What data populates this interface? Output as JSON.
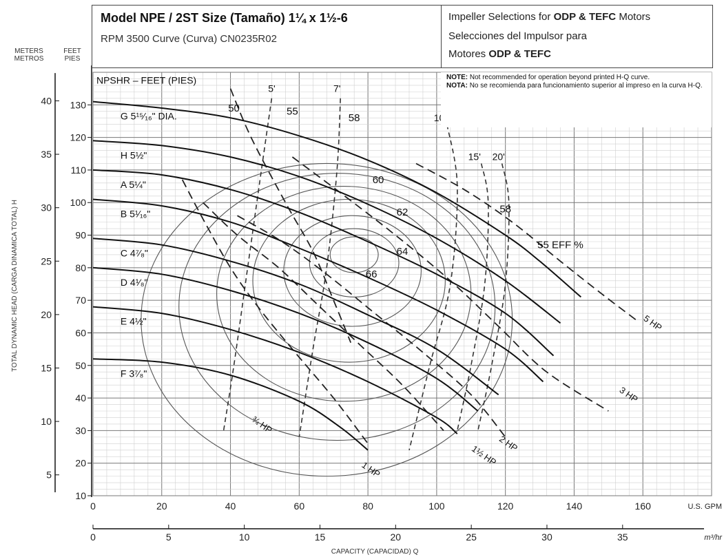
{
  "header": {
    "model_prefix": "Model NPE / 2ST Size (Tamaño) 1¼ x 1½-6",
    "rpm_line": "RPM 3500 Curve (Curva) CN0235R02",
    "impeller_line1_a": "Impeller Selections for ",
    "impeller_line1_b": "ODP & TEFC",
    "impeller_line1_c": " Motors",
    "impeller_line2": "Selecciones del Impulsor para",
    "impeller_line3_a": "Motores ",
    "impeller_line3_b": "ODP & TEFC"
  },
  "notes": {
    "note_label": "NOTE:",
    "note_text": " Not recommended for operation beyond printed H-Q curve.",
    "nota_label": "NOTA:",
    "nota_text": " No se recomienda para funcionamiento superior al impreso en la curva H-Q."
  },
  "chart_data": {
    "type": "line",
    "y_axis_left_label": "TOTAL DYNAMIC HEAD (CARGA DINAMICA TOTAL) H",
    "unit_meters": [
      "METERS",
      "METROS"
    ],
    "unit_feet": [
      "FEET",
      "PIES"
    ],
    "x_axis_gpm_unit": "U.S. GPM",
    "x_axis_m3_unit": "m³/hr",
    "x_axis_label": "CAPACITY (CAPACIDAD) Q",
    "npsh_label": "NPSHR – FEET (PIES)",
    "xlim_gpm": [
      0,
      180
    ],
    "ylim_feet": [
      10,
      140
    ],
    "x_ticks_gpm": [
      0,
      20,
      40,
      60,
      80,
      100,
      120,
      140,
      160
    ],
    "x_ticks_m3": [
      0,
      5,
      10,
      15,
      20,
      25,
      30,
      35
    ],
    "y_ticks_feet": [
      10,
      20,
      30,
      40,
      50,
      60,
      70,
      80,
      90,
      100,
      110,
      120,
      130
    ],
    "y_ticks_meters": [
      5,
      10,
      15,
      20,
      25,
      30,
      35,
      40
    ],
    "impeller_curves": [
      {
        "name": "G 5¹⁵⁄₁₆\" DIA.",
        "points": [
          [
            0,
            131
          ],
          [
            20,
            129
          ],
          [
            40,
            126
          ],
          [
            60,
            120.5
          ],
          [
            80,
            113
          ],
          [
            100,
            103
          ],
          [
            120,
            90
          ],
          [
            130,
            82
          ],
          [
            142,
            71
          ]
        ]
      },
      {
        "name": "H 5½\"",
        "points": [
          [
            0,
            119
          ],
          [
            20,
            117.5
          ],
          [
            40,
            114
          ],
          [
            60,
            108
          ],
          [
            80,
            99.5
          ],
          [
            100,
            89
          ],
          [
            120,
            76
          ],
          [
            136,
            63
          ]
        ]
      },
      {
        "name": "A 5¼\"",
        "points": [
          [
            0,
            110
          ],
          [
            20,
            108.5
          ],
          [
            40,
            104
          ],
          [
            60,
            97
          ],
          [
            80,
            88
          ],
          [
            100,
            78
          ],
          [
            120,
            66
          ],
          [
            134,
            53
          ]
        ]
      },
      {
        "name": "B 5¹⁄₁₆\"",
        "points": [
          [
            0,
            101
          ],
          [
            20,
            99
          ],
          [
            40,
            94
          ],
          [
            60,
            86
          ],
          [
            80,
            77
          ],
          [
            100,
            67
          ],
          [
            120,
            55
          ],
          [
            131,
            45
          ]
        ]
      },
      {
        "name": "C 4⁷⁄₈\"",
        "points": [
          [
            0,
            89
          ],
          [
            20,
            87
          ],
          [
            40,
            82
          ],
          [
            60,
            75
          ],
          [
            80,
            65.5
          ],
          [
            100,
            55
          ],
          [
            118,
            41
          ]
        ]
      },
      {
        "name": "D 4¹⁄₈\"",
        "points": [
          [
            0,
            80
          ],
          [
            20,
            78
          ],
          [
            40,
            73
          ],
          [
            60,
            66
          ],
          [
            80,
            57
          ],
          [
            100,
            46
          ],
          [
            112,
            36
          ]
        ]
      },
      {
        "name": "E 4½\"",
        "points": [
          [
            0,
            68
          ],
          [
            20,
            66
          ],
          [
            40,
            61
          ],
          [
            60,
            54
          ],
          [
            80,
            45
          ],
          [
            100,
            34
          ],
          [
            106,
            29
          ]
        ]
      },
      {
        "name": "F 3⁷⁄₈\"",
        "points": [
          [
            0,
            52
          ],
          [
            20,
            51
          ],
          [
            40,
            47
          ],
          [
            60,
            39
          ],
          [
            72,
            31
          ],
          [
            80,
            24
          ]
        ]
      }
    ],
    "efficiency_contours": [
      {
        "value": "50",
        "cx": 68,
        "cy": 64,
        "rx": 54,
        "ry": 48
      },
      {
        "value": "55",
        "cx": 71,
        "cy": 68,
        "rx": 46,
        "ry": 41
      },
      {
        "value": "58",
        "cx": 73,
        "cy": 72,
        "rx": 37,
        "ry": 33
      },
      {
        "value": "60",
        "cx": 74.5,
        "cy": 76,
        "rx": 28,
        "ry": 25
      },
      {
        "value": "62",
        "cx": 75.5,
        "cy": 79,
        "rx": 20,
        "ry": 17
      },
      {
        "value": "64",
        "cx": 76,
        "cy": 81.5,
        "rx": 13,
        "ry": 10.5
      },
      {
        "value": "66",
        "cx": 76,
        "cy": 84,
        "rx": 7,
        "ry": 5.5
      }
    ],
    "efficiency_labels": [
      {
        "text": "50",
        "x": 41,
        "y": 128
      },
      {
        "text": "55",
        "x": 58,
        "y": 127
      },
      {
        "text": "58",
        "x": 76,
        "y": 125
      },
      {
        "text": "60",
        "x": 83,
        "y": 106
      },
      {
        "text": "62",
        "x": 90,
        "y": 96
      },
      {
        "text": "64",
        "x": 90,
        "y": 84
      },
      {
        "text": "66",
        "x": 81,
        "y": 77
      },
      {
        "text": "58",
        "x": 120,
        "y": 97
      },
      {
        "text": "55 EFF %",
        "x": 136,
        "y": 86
      }
    ],
    "npsh_curves": [
      {
        "label": "5'",
        "points": [
          [
            52,
            132
          ],
          [
            49,
            110
          ],
          [
            45,
            80
          ],
          [
            41,
            50
          ],
          [
            38,
            30
          ]
        ]
      },
      {
        "label": "7'",
        "points": [
          [
            72,
            132
          ],
          [
            71,
            110
          ],
          [
            68,
            80
          ],
          [
            64,
            55
          ],
          [
            60,
            28
          ]
        ]
      },
      {
        "label": "10'",
        "points": [
          [
            103,
            124
          ],
          [
            106,
            105
          ],
          [
            104,
            75
          ],
          [
            98,
            50
          ],
          [
            92,
            24
          ]
        ]
      },
      {
        "label": "15'",
        "points": [
          [
            113,
            112
          ],
          [
            115,
            100
          ],
          [
            114,
            75
          ],
          [
            110,
            50
          ],
          [
            106,
            30
          ]
        ]
      },
      {
        "label": "20'",
        "points": [
          [
            119,
            112
          ],
          [
            121,
            100
          ],
          [
            120,
            75
          ],
          [
            116,
            50
          ],
          [
            112,
            30
          ]
        ]
      }
    ],
    "npsh_labels": [
      {
        "text": "5'",
        "x": 52,
        "y": 134
      },
      {
        "text": "7'",
        "x": 71,
        "y": 134
      },
      {
        "text": "10'",
        "x": 101,
        "y": 125
      },
      {
        "text": "15'",
        "x": 111,
        "y": 113
      },
      {
        "text": "20'",
        "x": 118,
        "y": 113
      }
    ],
    "hp_curves": [
      {
        "label": "¾ HP",
        "points": [
          [
            40,
            135
          ],
          [
            46,
            120
          ],
          [
            56,
            100
          ],
          [
            64,
            85
          ],
          [
            70,
            70
          ],
          [
            75,
            57
          ]
        ]
      },
      {
        "label": "1 HP",
        "points": [
          [
            26,
            107
          ],
          [
            32,
            95
          ],
          [
            40,
            80
          ],
          [
            48,
            68
          ],
          [
            58,
            55
          ],
          [
            70,
            40
          ],
          [
            80,
            26
          ]
        ]
      },
      {
        "label": "1½ HP",
        "points": [
          [
            32,
            100
          ],
          [
            42,
            90
          ],
          [
            54,
            80
          ],
          [
            66,
            68
          ],
          [
            78,
            56
          ],
          [
            90,
            44
          ],
          [
            102,
            30
          ]
        ]
      },
      {
        "label": "2 HP",
        "points": [
          [
            42,
            96
          ],
          [
            55,
            88
          ],
          [
            68,
            78
          ],
          [
            82,
            66
          ],
          [
            96,
            54
          ],
          [
            110,
            41
          ],
          [
            120,
            28
          ]
        ]
      },
      {
        "label": "3 HP",
        "points": [
          [
            58,
            114
          ],
          [
            72,
            103
          ],
          [
            88,
            90
          ],
          [
            104,
            76
          ],
          [
            118,
            62
          ],
          [
            132,
            48
          ],
          [
            150,
            36
          ]
        ]
      },
      {
        "label": "5 HP",
        "points": [
          [
            94,
            112
          ],
          [
            108,
            104
          ],
          [
            122,
            94
          ],
          [
            136,
            82
          ],
          [
            148,
            72
          ],
          [
            158,
            64
          ]
        ]
      }
    ],
    "hp_labels": [
      {
        "text": "¾ HP",
        "x": 46,
        "y": 33
      },
      {
        "text": "1 HP",
        "x": 78,
        "y": 19
      },
      {
        "text": "1½ HP",
        "x": 110,
        "y": 24
      },
      {
        "text": "2 HP",
        "x": 118,
        "y": 27
      },
      {
        "text": "3 HP",
        "x": 153,
        "y": 42
      },
      {
        "text": "5 HP",
        "x": 160,
        "y": 64
      }
    ]
  }
}
